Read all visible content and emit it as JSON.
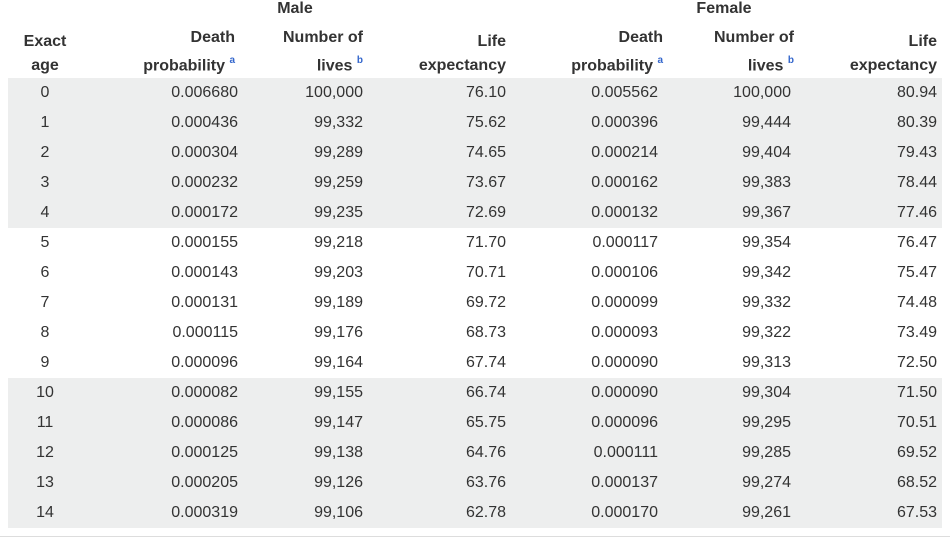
{
  "table": {
    "groups": {
      "male": "Male",
      "female": "Female"
    },
    "headers": {
      "age": [
        "Exact",
        "age"
      ],
      "male_death": [
        "Death",
        "probability",
        "a"
      ],
      "male_lives": [
        "Number of",
        "lives",
        "b"
      ],
      "male_life": [
        "Life",
        "expectancy"
      ],
      "female_death": [
        "Death",
        "probability",
        "a"
      ],
      "female_lives": [
        "Number of",
        "lives",
        "b"
      ],
      "female_life": [
        "Life",
        "expectancy"
      ]
    },
    "rows": [
      {
        "age": "0",
        "m_death": "0.006680",
        "m_lives": "100,000",
        "m_life": "76.10",
        "f_death": "0.005562",
        "f_lives": "100,000",
        "f_life": "80.94"
      },
      {
        "age": "1",
        "m_death": "0.000436",
        "m_lives": "99,332",
        "m_life": "75.62",
        "f_death": "0.000396",
        "f_lives": "99,444",
        "f_life": "80.39"
      },
      {
        "age": "2",
        "m_death": "0.000304",
        "m_lives": "99,289",
        "m_life": "74.65",
        "f_death": "0.000214",
        "f_lives": "99,404",
        "f_life": "79.43"
      },
      {
        "age": "3",
        "m_death": "0.000232",
        "m_lives": "99,259",
        "m_life": "73.67",
        "f_death": "0.000162",
        "f_lives": "99,383",
        "f_life": "78.44"
      },
      {
        "age": "4",
        "m_death": "0.000172",
        "m_lives": "99,235",
        "m_life": "72.69",
        "f_death": "0.000132",
        "f_lives": "99,367",
        "f_life": "77.46"
      },
      {
        "age": "5",
        "m_death": "0.000155",
        "m_lives": "99,218",
        "m_life": "71.70",
        "f_death": "0.000117",
        "f_lives": "99,354",
        "f_life": "76.47"
      },
      {
        "age": "6",
        "m_death": "0.000143",
        "m_lives": "99,203",
        "m_life": "70.71",
        "f_death": "0.000106",
        "f_lives": "99,342",
        "f_life": "75.47"
      },
      {
        "age": "7",
        "m_death": "0.000131",
        "m_lives": "99,189",
        "m_life": "69.72",
        "f_death": "0.000099",
        "f_lives": "99,332",
        "f_life": "74.48"
      },
      {
        "age": "8",
        "m_death": "0.000115",
        "m_lives": "99,176",
        "m_life": "68.73",
        "f_death": "0.000093",
        "f_lives": "99,322",
        "f_life": "73.49"
      },
      {
        "age": "9",
        "m_death": "0.000096",
        "m_lives": "99,164",
        "m_life": "67.74",
        "f_death": "0.000090",
        "f_lives": "99,313",
        "f_life": "72.50"
      },
      {
        "age": "10",
        "m_death": "0.000082",
        "m_lives": "99,155",
        "m_life": "66.74",
        "f_death": "0.000090",
        "f_lives": "99,304",
        "f_life": "71.50"
      },
      {
        "age": "11",
        "m_death": "0.000086",
        "m_lives": "99,147",
        "m_life": "65.75",
        "f_death": "0.000096",
        "f_lives": "99,295",
        "f_life": "70.51"
      },
      {
        "age": "12",
        "m_death": "0.000125",
        "m_lives": "99,138",
        "m_life": "64.76",
        "f_death": "0.000111",
        "f_lives": "99,285",
        "f_life": "69.52"
      },
      {
        "age": "13",
        "m_death": "0.000205",
        "m_lives": "99,126",
        "m_life": "63.76",
        "f_death": "0.000137",
        "f_lives": "99,274",
        "f_life": "68.52"
      },
      {
        "age": "14",
        "m_death": "0.000319",
        "m_lives": "99,106",
        "m_life": "62.78",
        "f_death": "0.000170",
        "f_lives": "99,261",
        "f_life": "67.53"
      }
    ]
  },
  "colors": {
    "text": "#333333",
    "band": "#edeeee",
    "footnote_link": "#3366cc"
  }
}
